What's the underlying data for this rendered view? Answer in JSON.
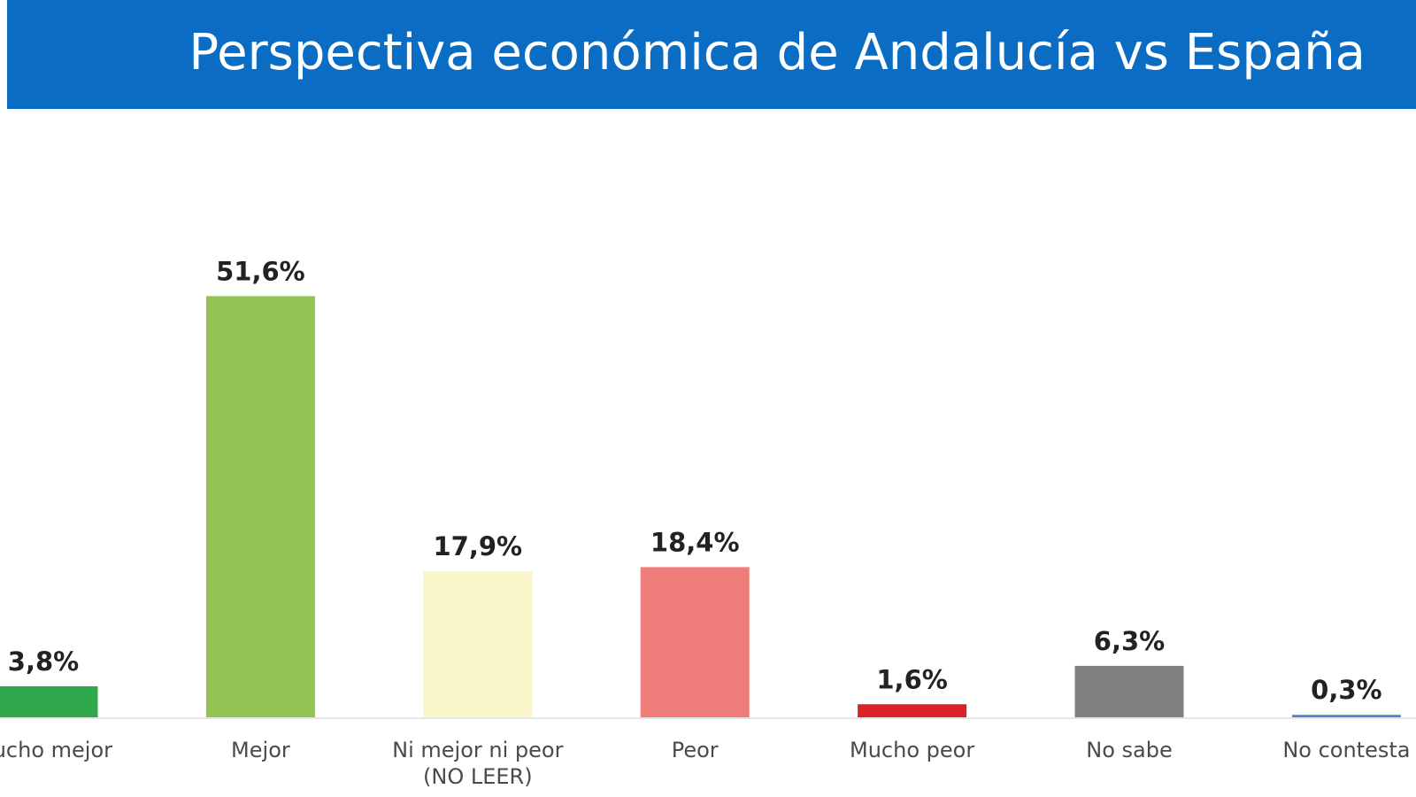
{
  "chart_data": {
    "type": "bar",
    "title": "Perspectiva económica de Andalucía vs España",
    "categories": [
      "Mucho mejor",
      "Mejor",
      "Ni mejor ni peor (NO LEER)",
      "Peor",
      "Mucho peor",
      "No sabe",
      "No contesta"
    ],
    "values": [
      3.8,
      51.6,
      17.9,
      18.4,
      1.6,
      6.3,
      0.3
    ],
    "value_labels": [
      "3,8%",
      "51,6%",
      "17,9%",
      "18,4%",
      "1,6%",
      "6,3%",
      "0,3%"
    ],
    "colors": [
      "#2ea84a",
      "#93c353",
      "#faf6cc",
      "#ee7c78",
      "#d92328",
      "#808080",
      "#4a86c8"
    ],
    "ylim": [
      0,
      55
    ]
  }
}
